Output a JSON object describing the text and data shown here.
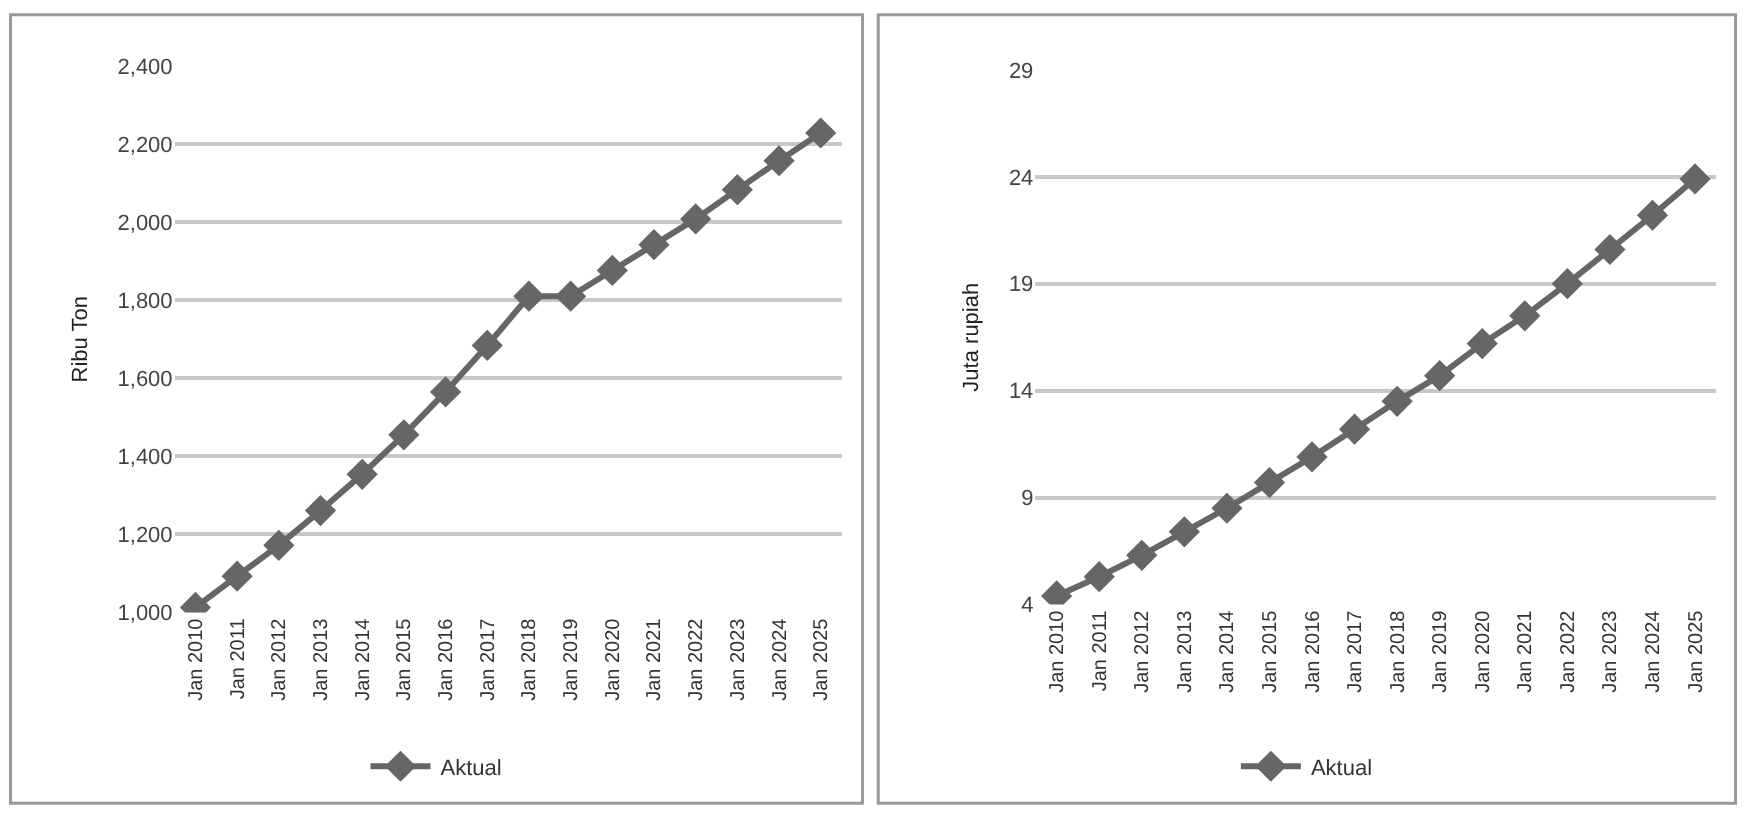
{
  "chart_data": [
    {
      "type": "line",
      "ylabel": "Ribu Ton",
      "categories": [
        "Jan 2010",
        "Jan 2011",
        "Jan 2012",
        "Jan 2013",
        "Jan 2014",
        "Jan 2015",
        "Jan 2016",
        "Jan 2017",
        "Jan 2018",
        "Jan 2019",
        "Jan 2020",
        "Jan 2021",
        "Jan 2022",
        "Jan 2023",
        "Jan 2024",
        "Jan 2025"
      ],
      "series": [
        {
          "name": "Aktual",
          "color": "#666666",
          "values": [
            1013,
            1093,
            1172,
            1261,
            1354,
            1455,
            1565,
            1684,
            1810,
            1810,
            1876,
            1942,
            2008,
            2083,
            2157,
            2228
          ]
        }
      ],
      "ylim": [
        1000,
        2400
      ],
      "yticks": [
        {
          "value": 1000,
          "label": "1,000"
        },
        {
          "value": 1200,
          "label": "1,200"
        },
        {
          "value": 1400,
          "label": "1,400"
        },
        {
          "value": 1600,
          "label": "1,600"
        },
        {
          "value": 1800,
          "label": "1,800"
        },
        {
          "value": 2000,
          "label": "2,000"
        },
        {
          "value": 2200,
          "label": "2,200"
        },
        {
          "value": 2400,
          "label": "2,400"
        }
      ],
      "grid": "y",
      "legend": "bottom",
      "marker": "diamond",
      "line_style": "solid"
    },
    {
      "type": "line",
      "ylabel": "Juta rupiah",
      "categories": [
        "Jan 2010",
        "Jan 2011",
        "Jan 2012",
        "Jan 2013",
        "Jan 2014",
        "Jan 2015",
        "Jan 2016",
        "Jan 2017",
        "Jan 2018",
        "Jan 2019",
        "Jan 2020",
        "Jan 2021",
        "Jan 2022",
        "Jan 2023",
        "Jan 2024",
        "Jan 2025"
      ],
      "series": [
        {
          "name": "Aktual",
          "color": "#666666",
          "values": [
            4.4,
            5.3,
            6.3,
            7.4,
            8.5,
            9.7,
            10.9,
            12.2,
            13.5,
            14.7,
            16.2,
            17.5,
            19.0,
            20.6,
            22.2,
            23.9
          ]
        }
      ],
      "ylim": [
        4,
        29
      ],
      "yticks": [
        4,
        9,
        14,
        19,
        24,
        29
      ],
      "grid": "y",
      "legend": "bottom",
      "marker": "diamond",
      "line_style": "solid"
    }
  ]
}
